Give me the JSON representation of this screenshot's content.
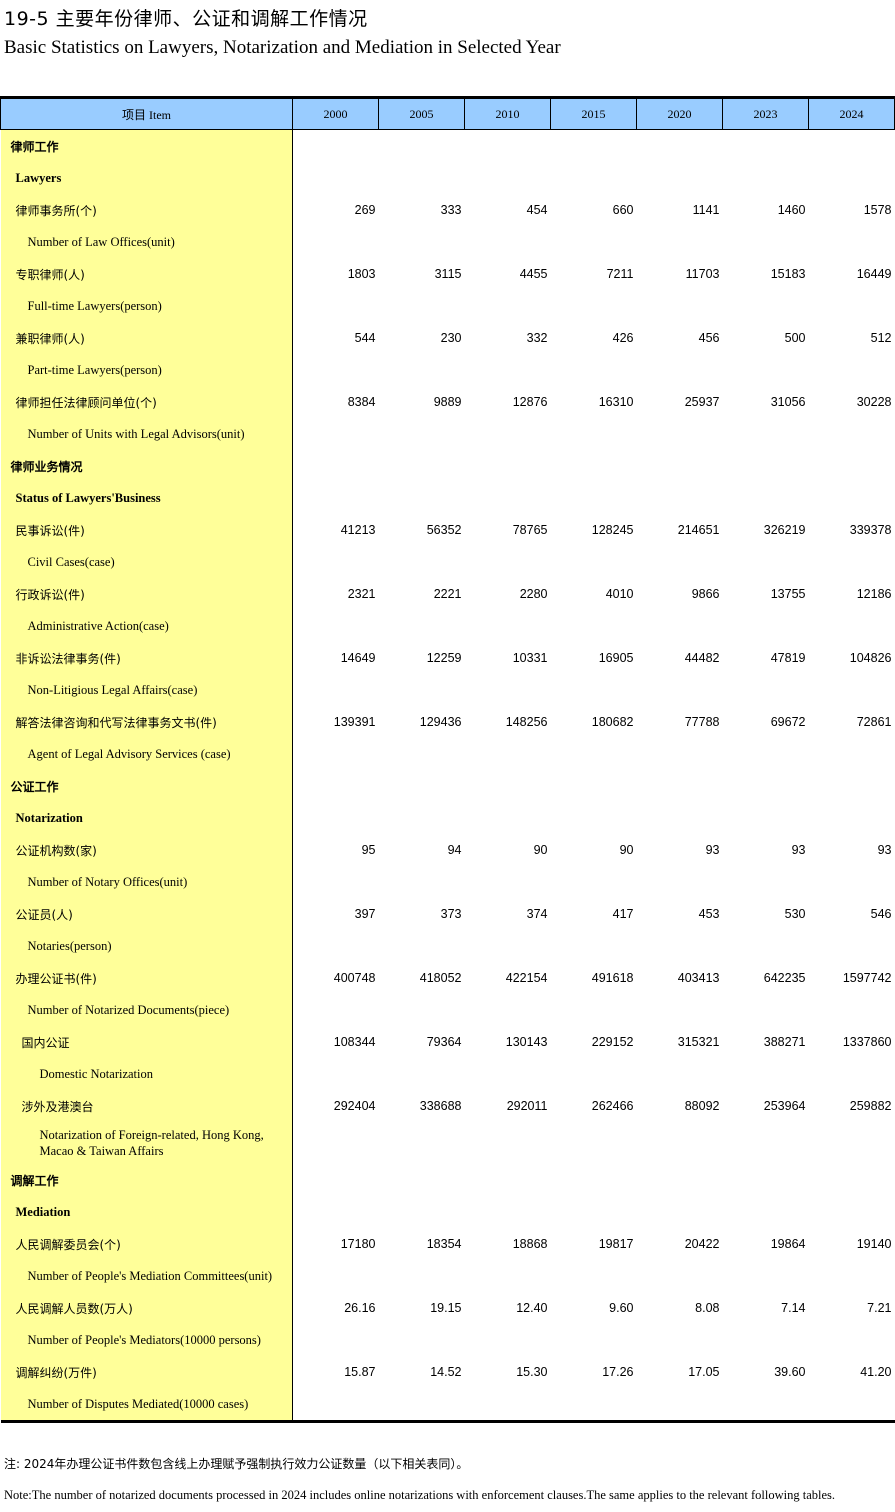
{
  "title_cn": "19-5 主要年份律师、公证和调解工作情况",
  "title_en": "Basic Statistics on Lawyers, Notarization and Mediation in Selected Year",
  "header": {
    "item": "项目  Item",
    "years": [
      "2000",
      "2005",
      "2010",
      "2015",
      "2020",
      "2023",
      "2024"
    ]
  },
  "colors": {
    "header_bg": "#99ccff",
    "label_bg": "#ffff99"
  },
  "rows": [
    {
      "label": "律师工作",
      "kind": "sec"
    },
    {
      "label": "Lawyers",
      "kind": "secen"
    },
    {
      "label": "律师事务所(个)",
      "kind": "cn",
      "values": [
        "269",
        "333",
        "454",
        "660",
        "1141",
        "1460",
        "1578"
      ]
    },
    {
      "label": "Number of Law Offices(unit)",
      "kind": "en"
    },
    {
      "label": "专职律师(人)",
      "kind": "cn",
      "values": [
        "1803",
        "3115",
        "4455",
        "7211",
        "11703",
        "15183",
        "16449"
      ]
    },
    {
      "label": "Full-time Lawyers(person)",
      "kind": "en"
    },
    {
      "label": "兼职律师(人)",
      "kind": "cn",
      "values": [
        "544",
        "230",
        "332",
        "426",
        "456",
        "500",
        "512"
      ]
    },
    {
      "label": "Part-time Lawyers(person)",
      "kind": "en"
    },
    {
      "label": "律师担任法律顾问单位(个)",
      "kind": "cn",
      "values": [
        "8384",
        "9889",
        "12876",
        "16310",
        "25937",
        "31056",
        "30228"
      ]
    },
    {
      "label": "Number of Units with Legal Advisors(unit)",
      "kind": "en"
    },
    {
      "label": "律师业务情况",
      "kind": "sec"
    },
    {
      "label": "Status of Lawyers'Business",
      "kind": "secen"
    },
    {
      "label": "民事诉讼(件)",
      "kind": "cn",
      "values": [
        "41213",
        "56352",
        "78765",
        "128245",
        "214651",
        "326219",
        "339378"
      ]
    },
    {
      "label": "Civil Cases(case)",
      "kind": "en"
    },
    {
      "label": "行政诉讼(件)",
      "kind": "cn",
      "values": [
        "2321",
        "2221",
        "2280",
        "4010",
        "9866",
        "13755",
        "12186"
      ]
    },
    {
      "label": "Administrative Action(case)",
      "kind": "en"
    },
    {
      "label": "非诉讼法律事务(件)",
      "kind": "cn",
      "values": [
        "14649",
        "12259",
        "10331",
        "16905",
        "44482",
        "47819",
        "104826"
      ]
    },
    {
      "label": "Non-Litigious Legal Affairs(case)",
      "kind": "en"
    },
    {
      "label": "解答法律咨询和代写法律事务文书(件)",
      "kind": "cn",
      "values": [
        "139391",
        "129436",
        "148256",
        "180682",
        "77788",
        "69672",
        "72861"
      ]
    },
    {
      "label": "Agent of Legal Advisory Services (case)",
      "kind": "en"
    },
    {
      "label": "公证工作",
      "kind": "sec"
    },
    {
      "label": "Notarization",
      "kind": "secen"
    },
    {
      "label": "公证机构数(家)",
      "kind": "cn",
      "values": [
        "95",
        "94",
        "90",
        "90",
        "93",
        "93",
        "93"
      ]
    },
    {
      "label": "Number of Notary Offices(unit)",
      "kind": "en"
    },
    {
      "label": "公证员(人)",
      "kind": "cn",
      "values": [
        "397",
        "373",
        "374",
        "417",
        "453",
        "530",
        "546"
      ]
    },
    {
      "label": "Notaries(person)",
      "kind": "en"
    },
    {
      "label": "办理公证书(件)",
      "kind": "cn",
      "values": [
        "400748",
        "418052",
        "422154",
        "491618",
        "403413",
        "642235",
        "1597742"
      ]
    },
    {
      "label": "Number of Notarized Documents(piece)",
      "kind": "en"
    },
    {
      "label": "国内公证",
      "kind": "subcn",
      "values": [
        "108344",
        "79364",
        "130143",
        "229152",
        "315321",
        "388271",
        "1337860"
      ]
    },
    {
      "label": "Domestic Notarization",
      "kind": "suben"
    },
    {
      "label": "涉外及港澳台",
      "kind": "subcn",
      "values": [
        "292404",
        "338688",
        "292011",
        "262466",
        "88092",
        "253964",
        "259882"
      ]
    },
    {
      "label": "Notarization of Foreign-related, Hong Kong, Macao & Taiwan Affairs",
      "kind": "suben",
      "tall": true
    },
    {
      "label": "调解工作",
      "kind": "sec"
    },
    {
      "label": "Mediation",
      "kind": "secen"
    },
    {
      "label": "人民调解委员会(个)",
      "kind": "cn",
      "values": [
        "17180",
        "18354",
        "18868",
        "19817",
        "20422",
        "19864",
        "19140"
      ]
    },
    {
      "label": "Number of People's Mediation Committees(unit)",
      "kind": "en"
    },
    {
      "label": "人民调解人员数(万人)",
      "kind": "cn",
      "values": [
        "26.16",
        "19.15",
        "12.40",
        "9.60",
        "8.08",
        "7.14",
        "7.21"
      ]
    },
    {
      "label": "Number of People's Mediators(10000 persons)",
      "kind": "en"
    },
    {
      "label": "调解纠纷(万件)",
      "kind": "cn",
      "values": [
        "15.87",
        "14.52",
        "15.30",
        "17.26",
        "17.05",
        "39.60",
        "41.20"
      ]
    },
    {
      "label": "Number of Disputes Mediated(10000 cases)",
      "kind": "en"
    }
  ],
  "note_cn": "注: 2024年办理公证书件数包含线上办理赋予强制执行效力公证数量（以下相关表同）。",
  "note_en": "Note:The number of notarized documents processed in 2024 includes online notarizations with enforcement clauses.The same applies to the relevant following tables."
}
